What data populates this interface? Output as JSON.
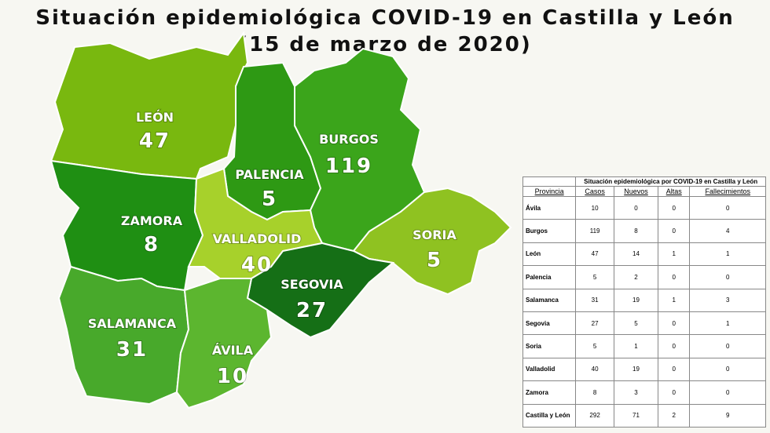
{
  "title": "Situación epidemiológica COVID-19 en Castilla y León",
  "subtitle": "(15 de marzo de 2020)",
  "regions": [
    {
      "name": "LEÓN",
      "value": 47,
      "color": "#79b80f"
    },
    {
      "name": "PALENCIA",
      "value": 5,
      "color": "#2e9914"
    },
    {
      "name": "BURGOS",
      "value": 119,
      "color": "#3ba51b"
    },
    {
      "name": "ZAMORA",
      "value": 8,
      "color": "#1f8f13"
    },
    {
      "name": "VALLADOLID",
      "value": 40,
      "color": "#a7d12b"
    },
    {
      "name": "SORIA",
      "value": 5,
      "color": "#8fc221"
    },
    {
      "name": "SEGOVIA",
      "value": 27,
      "color": "#156f16"
    },
    {
      "name": "SALAMANCA",
      "value": 31,
      "color": "#48a92b"
    },
    {
      "name": "ÁVILA",
      "value": 10,
      "color": "#5cb62f"
    }
  ],
  "table": {
    "title": "Situación epidemiológica por COVID-19 en Castilla y León",
    "headers": [
      "Provincia",
      "Casos",
      "Nuevos",
      "Altas",
      "Fallecimientos"
    ],
    "rows": [
      [
        "Ávila",
        10,
        0,
        0,
        0
      ],
      [
        "Burgos",
        119,
        8,
        0,
        4
      ],
      [
        "León",
        47,
        14,
        1,
        1
      ],
      [
        "Palencia",
        5,
        2,
        0,
        0
      ],
      [
        "Salamanca",
        31,
        19,
        1,
        3
      ],
      [
        "Segovia",
        27,
        5,
        0,
        1
      ],
      [
        "Soria",
        5,
        1,
        0,
        0
      ],
      [
        "Valladolid",
        40,
        19,
        0,
        0
      ],
      [
        "Zamora",
        8,
        3,
        0,
        0
      ],
      [
        "Castilla y León",
        292,
        71,
        2,
        9
      ]
    ]
  }
}
